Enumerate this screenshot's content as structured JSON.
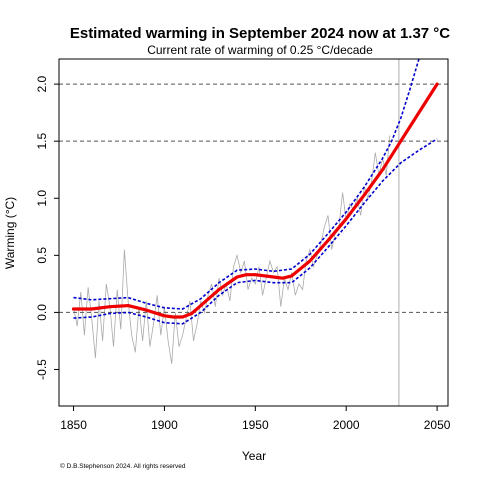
{
  "chart_data": {
    "type": "line",
    "title": "Estimated warming in September 2024 now at 1.37 °C",
    "subtitle": "Current rate of warming of 0.25 °C/decade",
    "xlabel": "Year",
    "ylabel": "Warming (°C)",
    "xlim": [
      1842,
      2056
    ],
    "ylim": [
      -0.82,
      2.22
    ],
    "xticks": [
      "1850",
      "1900",
      "1950",
      "2000",
      "2050"
    ],
    "yticks": [
      "-0.5",
      "0.0",
      "0.5",
      "1.0",
      "1.5",
      "2.0"
    ],
    "reference_lines_y": [
      0.0,
      1.5,
      2.0
    ],
    "current_year_line": 2029,
    "footnote": "© D.B.Stephenson 2024. All rights reserved",
    "colors": {
      "trend": "#ee0000",
      "band": "#0000cc",
      "observations": "#aaaaaa",
      "reference": "#555555"
    },
    "series": [
      {
        "role": "trend",
        "x": [
          1850,
          1860,
          1870,
          1880,
          1890,
          1900,
          1905,
          1910,
          1915,
          1920,
          1930,
          1940,
          1945,
          1950,
          1960,
          1965,
          1970,
          1980,
          1990,
          2000,
          2010,
          2020,
          2030,
          2040,
          2050
        ],
        "y": [
          0.03,
          0.03,
          0.05,
          0.06,
          0.02,
          -0.03,
          -0.04,
          -0.04,
          -0.01,
          0.06,
          0.2,
          0.31,
          0.33,
          0.33,
          0.31,
          0.3,
          0.32,
          0.45,
          0.63,
          0.82,
          1.03,
          1.25,
          1.5,
          1.75,
          2.0
        ]
      },
      {
        "role": "upper-bound",
        "x": [
          1850,
          1860,
          1870,
          1880,
          1890,
          1900,
          1910,
          1920,
          1930,
          1940,
          1950,
          1960,
          1970,
          1980,
          1990,
          2000,
          2010,
          2020,
          2025,
          2030,
          2035,
          2040
        ],
        "y": [
          0.13,
          0.11,
          0.12,
          0.13,
          0.08,
          0.04,
          0.03,
          0.12,
          0.26,
          0.37,
          0.38,
          0.36,
          0.38,
          0.51,
          0.69,
          0.88,
          1.1,
          1.35,
          1.5,
          1.7,
          1.95,
          2.22
        ]
      },
      {
        "role": "lower-bound",
        "x": [
          1850,
          1860,
          1870,
          1880,
          1890,
          1900,
          1910,
          1920,
          1930,
          1940,
          1950,
          1960,
          1970,
          1980,
          1990,
          2000,
          2010,
          2020,
          2030,
          2040,
          2050
        ],
        "y": [
          -0.05,
          -0.04,
          -0.01,
          0.0,
          -0.04,
          -0.09,
          -0.1,
          0.0,
          0.15,
          0.26,
          0.28,
          0.26,
          0.26,
          0.39,
          0.57,
          0.76,
          0.96,
          1.15,
          1.31,
          1.42,
          1.52
        ]
      },
      {
        "role": "observations",
        "x": [
          1850,
          1852,
          1854,
          1856,
          1858,
          1860,
          1862,
          1864,
          1866,
          1868,
          1870,
          1872,
          1874,
          1876,
          1878,
          1880,
          1882,
          1884,
          1886,
          1888,
          1890,
          1892,
          1894,
          1896,
          1898,
          1900,
          1902,
          1904,
          1906,
          1908,
          1910,
          1912,
          1914,
          1916,
          1918,
          1920,
          1922,
          1924,
          1926,
          1928,
          1930,
          1932,
          1934,
          1936,
          1938,
          1940,
          1942,
          1944,
          1946,
          1948,
          1950,
          1952,
          1954,
          1956,
          1958,
          1960,
          1962,
          1964,
          1966,
          1968,
          1970,
          1972,
          1974,
          1976,
          1978,
          1980,
          1982,
          1984,
          1986,
          1988,
          1990,
          1992,
          1994,
          1996,
          1998,
          2000,
          2002,
          2004,
          2006,
          2008,
          2010,
          2012,
          2014,
          2016,
          2018,
          2020,
          2022,
          2024
        ],
        "y": [
          0.04,
          -0.12,
          0.18,
          -0.2,
          0.22,
          -0.05,
          -0.4,
          0.1,
          -0.25,
          0.25,
          0.05,
          -0.3,
          0.2,
          -0.15,
          0.55,
          0.1,
          -0.2,
          -0.35,
          0.05,
          -0.25,
          0.1,
          -0.3,
          -0.1,
          0.15,
          -0.2,
          0.05,
          -0.25,
          -0.45,
          0.0,
          -0.3,
          -0.2,
          -0.05,
          0.1,
          -0.25,
          -0.1,
          0.1,
          0.0,
          0.15,
          0.25,
          0.05,
          0.3,
          0.15,
          0.25,
          0.1,
          0.4,
          0.5,
          0.35,
          0.45,
          0.2,
          0.3,
          0.25,
          0.4,
          0.15,
          0.3,
          0.45,
          0.35,
          0.4,
          0.05,
          0.3,
          0.2,
          0.35,
          0.15,
          0.25,
          0.2,
          0.45,
          0.55,
          0.4,
          0.5,
          0.6,
          0.75,
          0.85,
          0.55,
          0.7,
          0.75,
          1.05,
          0.8,
          0.95,
          0.9,
          1.0,
          0.85,
          1.1,
          1.0,
          1.15,
          1.4,
          1.2,
          1.35,
          1.2,
          1.55
        ]
      }
    ]
  }
}
